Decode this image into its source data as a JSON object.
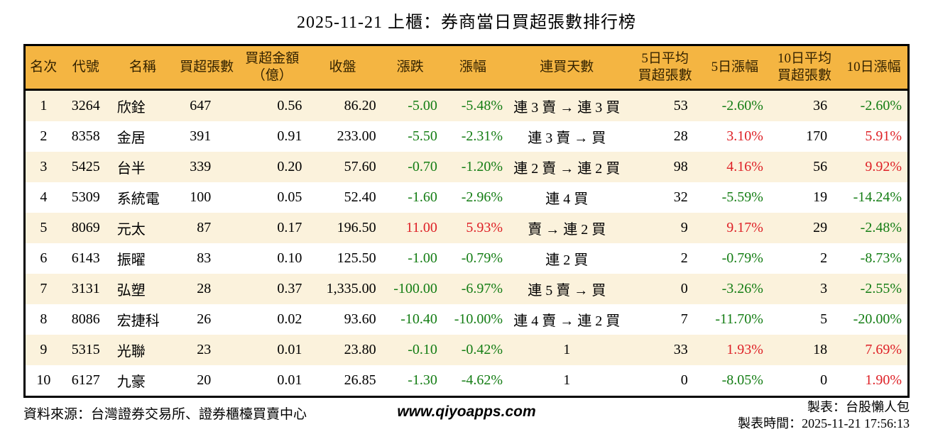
{
  "title": "2025-11-21 上櫃：券商當日買超張數排行榜",
  "colors": {
    "header_bg": "#F4B542",
    "row_alt_bg": "#FBF2DC",
    "row_bg": "#FFFFFF",
    "up_red": "#DE2026",
    "down_green": "#147D14",
    "border": "#000000"
  },
  "table": {
    "columns": [
      {
        "key": "rank",
        "label": "名次"
      },
      {
        "key": "code",
        "label": "代號"
      },
      {
        "key": "name",
        "label": "名稱"
      },
      {
        "key": "net-buy-lots",
        "label": "買超張數"
      },
      {
        "key": "net-buy-amount",
        "label": "買超金額\n（億）"
      },
      {
        "key": "close",
        "label": "收盤"
      },
      {
        "key": "change",
        "label": "漲跌"
      },
      {
        "key": "change-pct",
        "label": "漲幅"
      },
      {
        "key": "buy-streak",
        "label": "連買天數"
      },
      {
        "key": "avg5-net-buy",
        "label": "5日平均\n買超張數"
      },
      {
        "key": "pct5",
        "label": "5日漲幅"
      },
      {
        "key": "avg10-net-buy",
        "label": "10日平均\n買超張數"
      },
      {
        "key": "pct10",
        "label": "10日漲幅"
      }
    ],
    "colored_columns": [
      6,
      7,
      10,
      12
    ],
    "rows": [
      [
        "1",
        "3264",
        "欣銓",
        "647",
        "0.56",
        "86.20",
        "-5.00",
        "-5.48%",
        "連 3 賣 → 連 3 買",
        "53",
        "-2.60%",
        "36",
        "-2.60%"
      ],
      [
        "2",
        "8358",
        "金居",
        "391",
        "0.91",
        "233.00",
        "-5.50",
        "-2.31%",
        "連 3 賣 → 買",
        "28",
        "3.10%",
        "170",
        "5.91%"
      ],
      [
        "3",
        "5425",
        "台半",
        "339",
        "0.20",
        "57.60",
        "-0.70",
        "-1.20%",
        "連 2 賣 → 連 2 買",
        "98",
        "4.16%",
        "56",
        "9.92%"
      ],
      [
        "4",
        "5309",
        "系統電",
        "100",
        "0.05",
        "52.40",
        "-1.60",
        "-2.96%",
        "連 4 買",
        "32",
        "-5.59%",
        "19",
        "-14.24%"
      ],
      [
        "5",
        "8069",
        "元太",
        "87",
        "0.17",
        "196.50",
        "11.00",
        "5.93%",
        "賣 → 連 2 買",
        "9",
        "9.17%",
        "29",
        "-2.48%"
      ],
      [
        "6",
        "6143",
        "振曜",
        "83",
        "0.10",
        "125.50",
        "-1.00",
        "-0.79%",
        "連 2 買",
        "2",
        "-0.79%",
        "2",
        "-8.73%"
      ],
      [
        "7",
        "3131",
        "弘塑",
        "28",
        "0.37",
        "1,335.00",
        "-100.00",
        "-6.97%",
        "連 5 賣 → 買",
        "0",
        "-3.26%",
        "3",
        "-2.55%"
      ],
      [
        "8",
        "8086",
        "宏捷科",
        "26",
        "0.02",
        "93.60",
        "-10.40",
        "-10.00%",
        "連 4 賣 → 連 2 買",
        "7",
        "-11.70%",
        "5",
        "-20.00%"
      ],
      [
        "9",
        "5315",
        "光聯",
        "23",
        "0.01",
        "23.80",
        "-0.10",
        "-0.42%",
        "1",
        "33",
        "1.93%",
        "18",
        "7.69%"
      ],
      [
        "10",
        "6127",
        "九豪",
        "20",
        "0.01",
        "26.85",
        "-1.30",
        "-4.62%",
        "1",
        "0",
        "-8.05%",
        "0",
        "1.90%"
      ]
    ]
  },
  "footer": {
    "source": "資料來源：台灣證券交易所、證券櫃檯買賣中心",
    "website": "www.qiyoapps.com",
    "author": "製表：台股懶人包",
    "generated_time": "製表時間：2025-11-21 17:56:13"
  }
}
